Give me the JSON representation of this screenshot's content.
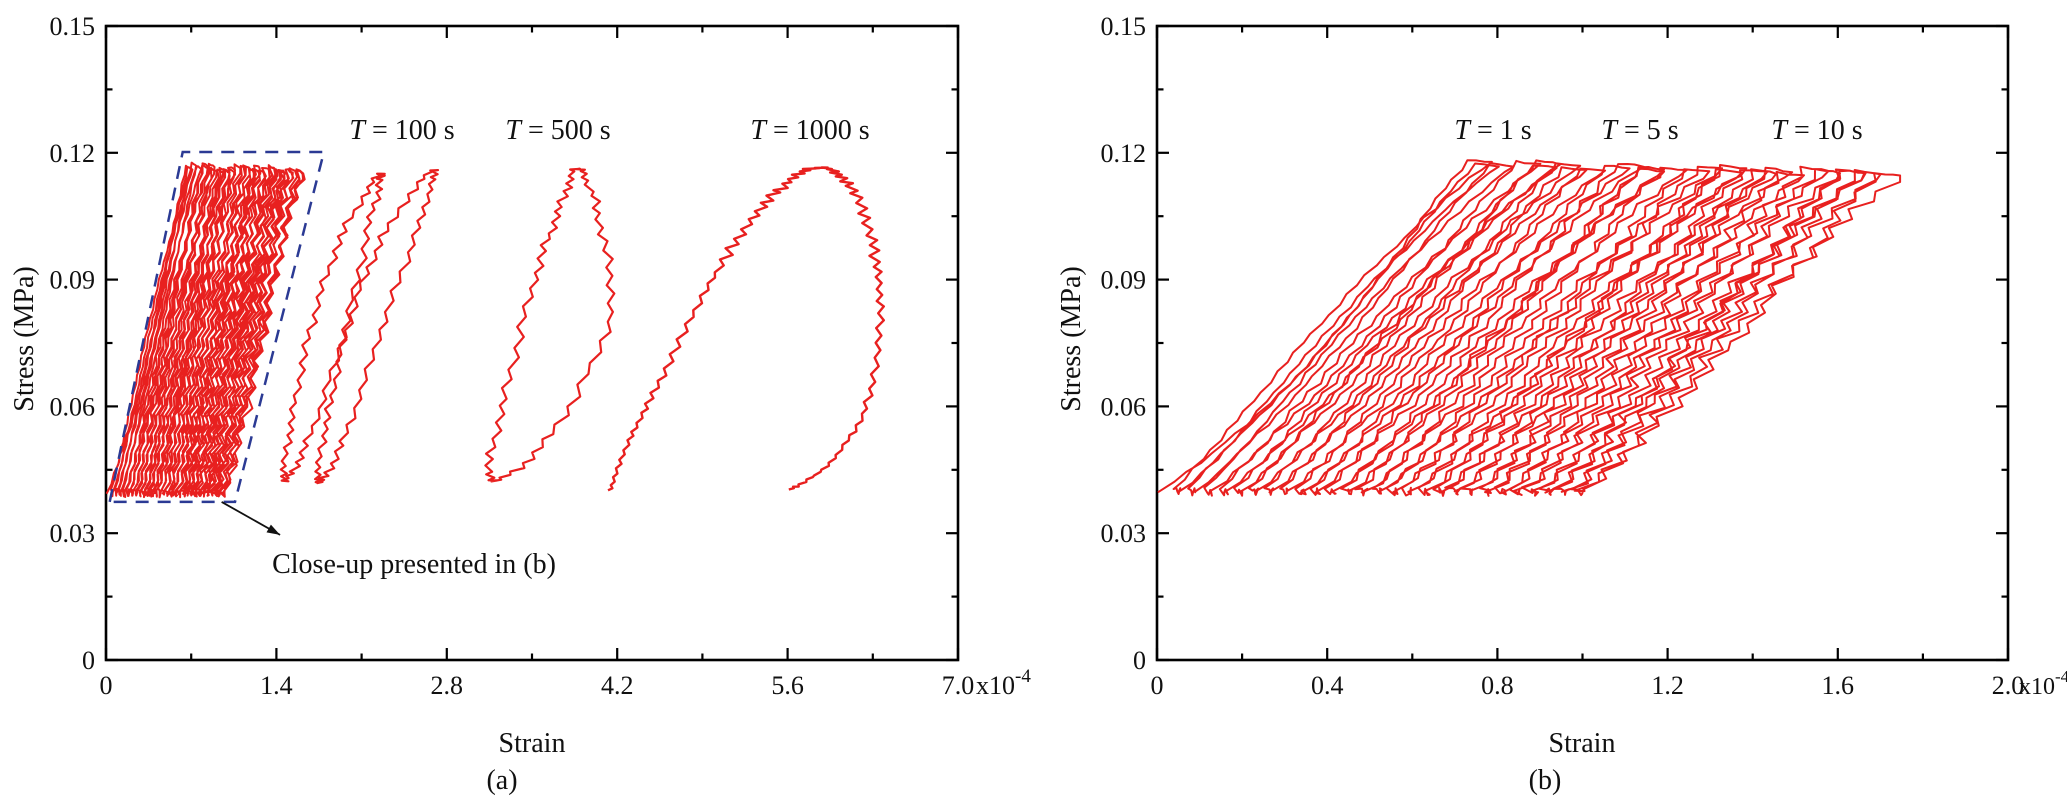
{
  "figure": {
    "background": "#ffffff",
    "curve_color": "#e8201f",
    "closeup_box_color": "#2b3a94",
    "axis_color": "#000000",
    "text_color": "#111111"
  },
  "chart_data": [
    {
      "panel": "a",
      "type": "line",
      "tag": "(a)",
      "xlabel": "Strain",
      "ylabel": "Stress (MPa)",
      "strain_unit_multiplier": "1e-4",
      "xlim": [
        0,
        7.0
      ],
      "ylim": [
        0,
        0.15
      ],
      "grid": false,
      "xticks": {
        "values": [
          0,
          1.4,
          2.8,
          4.2,
          5.6,
          7.0
        ],
        "labels": [
          "0",
          "1.4",
          "2.8",
          "4.2",
          "5.6",
          "7.0"
        ],
        "minor": [
          0.7,
          2.1,
          3.5,
          4.9,
          6.3
        ],
        "scale_mant": "x10",
        "scale_exp": "-4"
      },
      "yticks": {
        "values": [
          0,
          0.03,
          0.06,
          0.09,
          0.12,
          0.15
        ],
        "labels": [
          "0",
          "0.03",
          "0.06",
          "0.09",
          "0.12",
          "0.15"
        ],
        "minor": [
          0.015,
          0.045,
          0.075,
          0.105,
          0.135
        ]
      },
      "stress_plateau_bottom": 0.04,
      "stress_plateau_top": 0.116,
      "annotations": [
        {
          "var": "T",
          "rest": " = 100 s",
          "x": 2.43,
          "y": 0.1236
        },
        {
          "var": "T",
          "rest": " = 500 s",
          "x": 3.71,
          "y": 0.1236
        },
        {
          "var": "T",
          "rest": " = 1000 s",
          "x": 5.78,
          "y": 0.1236
        }
      ],
      "series": [
        {
          "name": "short-period cycles (close-up region)",
          "kind": "cluster",
          "n": 30,
          "strain_start": 0.025,
          "strain_end": 0.975,
          "step_frac": 0.62,
          "shear": 0.62,
          "base": 0.0395,
          "top0": 0.117,
          "top1": 0.116,
          "top_width": 0.04,
          "amp0": 0.01,
          "amp1": 0.035,
          "amp_smooth": 0.006,
          "smooth_first": 4,
          "toe_start": 0.01,
          "stroke": 2.0
        },
        {
          "name": "T = 100 s loop 1",
          "kind": "loop",
          "amp": 0.03,
          "stroke": 2.2,
          "keypoints": [
            [
              1.46,
              0.0425
            ],
            [
              1.52,
              0.056
            ],
            [
              1.68,
              0.078
            ],
            [
              1.93,
              0.1
            ],
            [
              2.25,
              0.1148
            ],
            [
              2.18,
              0.105
            ],
            [
              1.96,
              0.078
            ],
            [
              1.66,
              0.052
            ]
          ]
        },
        {
          "name": "T = 100 s loop 2",
          "kind": "loop",
          "amp": 0.03,
          "stroke": 2.2,
          "keypoints": [
            [
              1.74,
              0.042
            ],
            [
              1.81,
              0.056
            ],
            [
              1.98,
              0.078
            ],
            [
              2.27,
              0.1
            ],
            [
              2.68,
              0.1158
            ],
            [
              2.58,
              0.104
            ],
            [
              2.26,
              0.078
            ],
            [
              1.95,
              0.052
            ]
          ]
        },
        {
          "name": "T = 500 s loop",
          "kind": "loop",
          "amp": 0.035,
          "stroke": 2.2,
          "keypoints": [
            [
              3.16,
              0.0425
            ],
            [
              3.26,
              0.06
            ],
            [
              3.5,
              0.088
            ],
            [
              3.72,
              0.106
            ],
            [
              3.88,
              0.1162
            ],
            [
              4.05,
              0.104
            ],
            [
              4.13,
              0.08
            ],
            [
              3.62,
              0.052
            ]
          ]
        },
        {
          "name": "T = 1000 s cycle",
          "kind": "open",
          "amp": 0.045,
          "stroke": 2.4,
          "points": [
            [
              4.14,
              0.0402
            ],
            [
              4.3,
              0.052
            ],
            [
              4.55,
              0.066
            ],
            [
              4.9,
              0.086
            ],
            [
              5.25,
              0.102
            ],
            [
              5.58,
              0.1125
            ],
            [
              5.86,
              0.1165
            ],
            [
              6.12,
              0.112
            ],
            [
              6.3,
              0.098
            ],
            [
              6.36,
              0.082
            ],
            [
              6.26,
              0.061
            ],
            [
              5.95,
              0.0468
            ],
            [
              5.62,
              0.0402
            ]
          ]
        }
      ],
      "closeup_box": {
        "corners": [
          [
            0.03,
            0.0374
          ],
          [
            0.63,
            0.1202
          ],
          [
            1.79,
            0.1202
          ],
          [
            1.06,
            0.0374
          ]
        ]
      },
      "closeup_arrow": {
        "from": [
          0.95,
          0.0374
        ],
        "to": [
          1.43,
          0.0296
        ]
      },
      "closeup_note": {
        "text": "Close-up presented in (b)",
        "x": 2.53,
        "y": 0.0222
      }
    },
    {
      "panel": "b",
      "type": "line",
      "tag": "(b)",
      "xlabel": "Strain",
      "ylabel": "Stress (MPa)",
      "strain_unit_multiplier": "1e-4",
      "xlim": [
        0,
        2.0
      ],
      "ylim": [
        0,
        0.15
      ],
      "grid": false,
      "xticks": {
        "values": [
          0,
          0.4,
          0.8,
          1.2,
          1.6,
          2.0
        ],
        "labels": [
          "0",
          "0.4",
          "0.8",
          "1.2",
          "1.6",
          "2.0"
        ],
        "minor": [
          0.2,
          0.6,
          1.0,
          1.4,
          1.8
        ],
        "scale_mant": "x10",
        "scale_exp": "-4"
      },
      "yticks": {
        "values": [
          0,
          0.03,
          0.06,
          0.09,
          0.12,
          0.15
        ],
        "labels": [
          "0",
          "0.03",
          "0.06",
          "0.09",
          "0.12",
          "0.15"
        ],
        "minor": [
          0.015,
          0.045,
          0.075,
          0.105,
          0.135
        ]
      },
      "stress_plateau_bottom": 0.04,
      "stress_plateau_top": 0.116,
      "annotations": [
        {
          "var": "T",
          "rest": " = 1 s",
          "x": 0.79,
          "y": 0.1236
        },
        {
          "var": "T",
          "rest": " = 5 s",
          "x": 1.135,
          "y": 0.1236
        },
        {
          "var": "T",
          "rest": " = 10 s",
          "x": 1.551,
          "y": 0.1236
        }
      ],
      "series": [
        {
          "name": "close-up of short-period cycles (T = 1, 5, 10 s)",
          "kind": "cluster",
          "n": 28,
          "strain_start": 0.02,
          "strain_end": 1.0,
          "step_frac": 0.62,
          "shear": 0.7,
          "base": 0.0398,
          "top0": 0.118,
          "top1": 0.1152,
          "top_width": 0.055,
          "amp0": 0.005,
          "amp1": 0.02,
          "amp_smooth": 0.004,
          "smooth_first": 3,
          "toe_start": 0.004,
          "stroke": 2.0
        }
      ]
    }
  ]
}
